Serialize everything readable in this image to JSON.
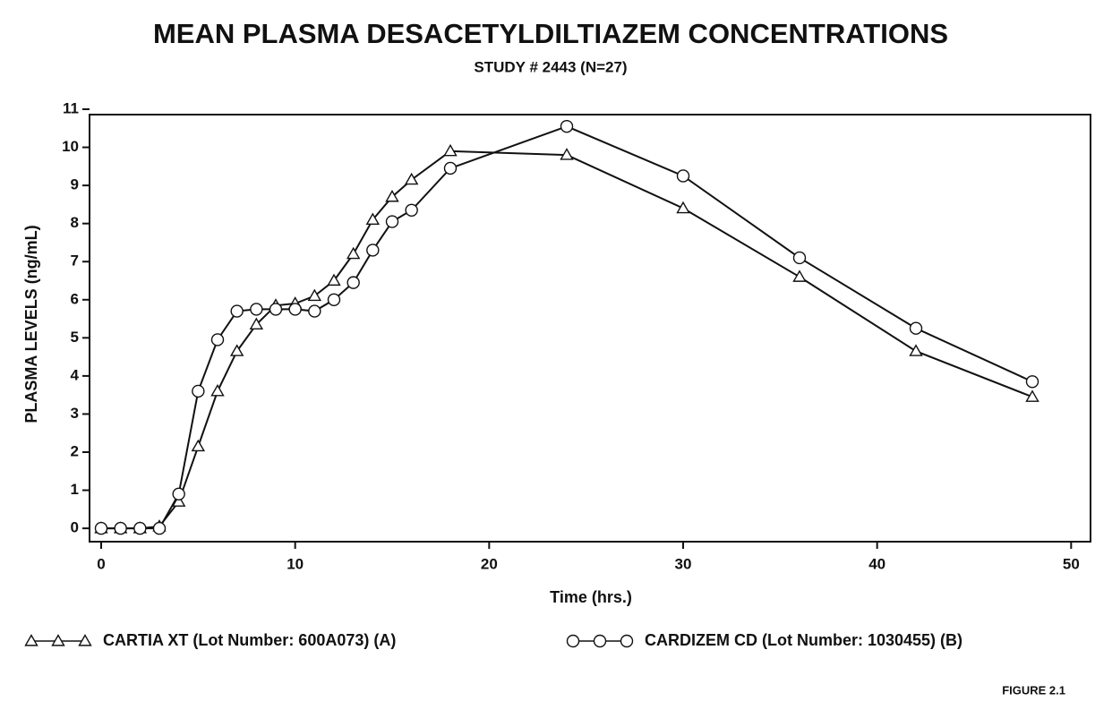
{
  "chart_data": {
    "type": "line",
    "title": "MEAN PLASMA DESACETYLDILTIAZEM CONCENTRATIONS",
    "subtitle": "STUDY # 2443 (N=27)",
    "x_label": "Time (hrs.)",
    "y_label": "PLASMA LEVELS (ng/mL)",
    "annotation": "FIGURE 2.1",
    "x": [
      0,
      1,
      2,
      3,
      4,
      5,
      6,
      7,
      8,
      9,
      10,
      11,
      12,
      13,
      14,
      15,
      16,
      18,
      24,
      30,
      36,
      42,
      48
    ],
    "series": [
      {
        "name": "CARTIA XT (Lot Number: 600A073) (A)",
        "color": "#111111",
        "marker": "triangle",
        "values": [
          0,
          0,
          0,
          0.05,
          0.7,
          2.15,
          3.6,
          4.65,
          5.35,
          5.85,
          5.9,
          6.1,
          6.5,
          7.2,
          8.1,
          8.7,
          9.15,
          9.9,
          9.8,
          8.4,
          6.6,
          4.65,
          3.45
        ]
      },
      {
        "name": "CARDIZEM CD (Lot Number: 1030455) (B)",
        "color": "#111111",
        "marker": "circle",
        "values": [
          0,
          0,
          0,
          0,
          0.9,
          3.6,
          4.95,
          5.7,
          5.75,
          5.75,
          5.75,
          5.7,
          6.0,
          6.45,
          7.3,
          8.05,
          8.35,
          9.45,
          10.55,
          9.25,
          7.1,
          5.25,
          3.85
        ]
      }
    ],
    "xlim": [
      -0.6,
      51
    ],
    "xticks": [
      0,
      10,
      20,
      30,
      40,
      50
    ],
    "ylim": [
      -0.35,
      11
    ],
    "yticks": [
      0,
      1,
      2,
      3,
      4,
      5,
      6,
      7,
      8,
      9,
      10,
      11
    ],
    "grid": false,
    "legend": "bottom"
  }
}
